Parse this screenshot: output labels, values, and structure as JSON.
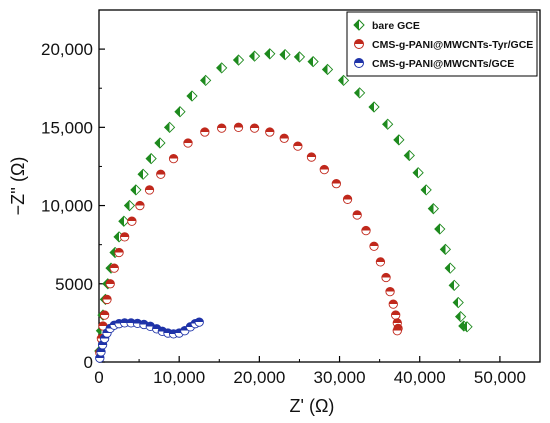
{
  "chart_data": {
    "type": "scatter",
    "title": "",
    "xlabel": "Z' (Ω)",
    "ylabel": "−Z'' (Ω)",
    "xlim": [
      0,
      55000
    ],
    "ylim": [
      0,
      22500
    ],
    "xticks": [
      0,
      10000,
      20000,
      30000,
      40000,
      50000
    ],
    "xtick_labels": [
      "0",
      "10,000",
      "20,000",
      "30,000",
      "40,000",
      "50,000"
    ],
    "yticks": [
      0,
      5000,
      10000,
      15000,
      20000
    ],
    "ytick_labels": [
      "0",
      "5000",
      "10,000",
      "15,000",
      "20,000"
    ],
    "grid": false,
    "legend_position": "top-right",
    "series": [
      {
        "name": "bare GCE",
        "marker": "diamond-half",
        "color": "#1e8a1e",
        "points": [
          [
            100,
            700
          ],
          [
            300,
            2000
          ],
          [
            500,
            3000
          ],
          [
            800,
            4000
          ],
          [
            1100,
            5000
          ],
          [
            1500,
            6000
          ],
          [
            2000,
            7000
          ],
          [
            2500,
            8000
          ],
          [
            3100,
            9000
          ],
          [
            3800,
            10000
          ],
          [
            4600,
            11000
          ],
          [
            5500,
            12000
          ],
          [
            6500,
            13000
          ],
          [
            7600,
            14000
          ],
          [
            8800,
            15000
          ],
          [
            10100,
            16000
          ],
          [
            11600,
            17000
          ],
          [
            13300,
            18000
          ],
          [
            15300,
            18800
          ],
          [
            17400,
            19300
          ],
          [
            19400,
            19550
          ],
          [
            21300,
            19700
          ],
          [
            23200,
            19650
          ],
          [
            25000,
            19500
          ],
          [
            26700,
            19200
          ],
          [
            28500,
            18700
          ],
          [
            30500,
            18000
          ],
          [
            32500,
            17200
          ],
          [
            34300,
            16300
          ],
          [
            36000,
            15200
          ],
          [
            37400,
            14200
          ],
          [
            38700,
            13200
          ],
          [
            39800,
            12100
          ],
          [
            40800,
            11000
          ],
          [
            41700,
            9800
          ],
          [
            42500,
            8500
          ],
          [
            43200,
            7200
          ],
          [
            43800,
            6000
          ],
          [
            44300,
            4900
          ],
          [
            44800,
            3800
          ],
          [
            45100,
            2900
          ],
          [
            45500,
            2300
          ],
          [
            45900,
            2250
          ]
        ]
      },
      {
        "name": "CMS-g-PANI@MWCNTs-Tyr/GCE",
        "marker": "circle-half",
        "color": "#c0281c",
        "points": [
          [
            100,
            600
          ],
          [
            300,
            1500
          ],
          [
            500,
            2300
          ],
          [
            700,
            3000
          ],
          [
            1000,
            4000
          ],
          [
            1400,
            5000
          ],
          [
            1900,
            6000
          ],
          [
            2500,
            7000
          ],
          [
            3200,
            8000
          ],
          [
            4100,
            9000
          ],
          [
            5100,
            10000
          ],
          [
            6300,
            11000
          ],
          [
            7700,
            12000
          ],
          [
            9300,
            13000
          ],
          [
            11100,
            14000
          ],
          [
            13200,
            14700
          ],
          [
            15300,
            14950
          ],
          [
            17400,
            15000
          ],
          [
            19400,
            14950
          ],
          [
            21300,
            14700
          ],
          [
            23100,
            14300
          ],
          [
            24800,
            13800
          ],
          [
            26500,
            13100
          ],
          [
            28100,
            12300
          ],
          [
            29600,
            11400
          ],
          [
            31000,
            10400
          ],
          [
            32200,
            9400
          ],
          [
            33300,
            8400
          ],
          [
            34300,
            7400
          ],
          [
            35100,
            6400
          ],
          [
            35800,
            5400
          ],
          [
            36300,
            4500
          ],
          [
            36700,
            3700
          ],
          [
            37000,
            3000
          ],
          [
            37200,
            2500
          ],
          [
            37300,
            2150
          ],
          [
            37200,
            2000
          ]
        ]
      },
      {
        "name": "CMS-g-PANI@MWCNTs/GCE",
        "marker": "circle-half",
        "color": "#1f33a8",
        "points": [
          [
            100,
            250
          ],
          [
            250,
            650
          ],
          [
            450,
            1100
          ],
          [
            700,
            1500
          ],
          [
            1000,
            1850
          ],
          [
            1400,
            2150
          ],
          [
            1900,
            2350
          ],
          [
            2500,
            2450
          ],
          [
            3200,
            2500
          ],
          [
            4000,
            2500
          ],
          [
            4800,
            2470
          ],
          [
            5600,
            2400
          ],
          [
            6400,
            2280
          ],
          [
            7200,
            2120
          ],
          [
            7900,
            1960
          ],
          [
            8600,
            1850
          ],
          [
            9300,
            1800
          ],
          [
            10000,
            1850
          ],
          [
            10700,
            2000
          ],
          [
            11400,
            2250
          ],
          [
            12000,
            2450
          ],
          [
            12500,
            2550
          ]
        ]
      }
    ]
  }
}
